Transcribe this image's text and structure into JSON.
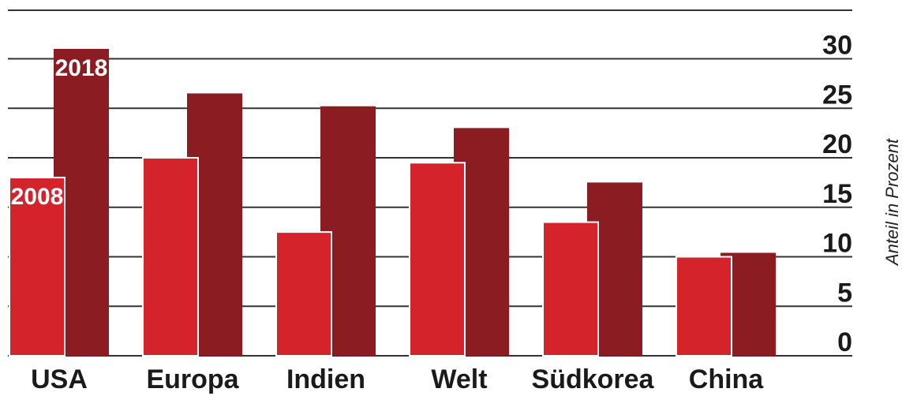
{
  "chart_data": {
    "type": "bar",
    "categories": [
      "USA",
      "Europa",
      "Indien",
      "Welt",
      "Südkorea",
      "China"
    ],
    "series": [
      {
        "name": "2008",
        "color": "#d4232b",
        "values": [
          18,
          20,
          12.5,
          19.5,
          13.5,
          10
        ]
      },
      {
        "name": "2018",
        "color": "#8b1c22",
        "values": [
          31,
          26.5,
          25.2,
          23,
          17.5,
          10.4
        ]
      }
    ],
    "ylabel": "Anteil in Prozent",
    "ylim": [
      0,
      30
    ],
    "yticks": [
      0,
      5,
      10,
      15,
      20,
      25,
      30
    ],
    "grid": true,
    "axis_side": "right"
  }
}
